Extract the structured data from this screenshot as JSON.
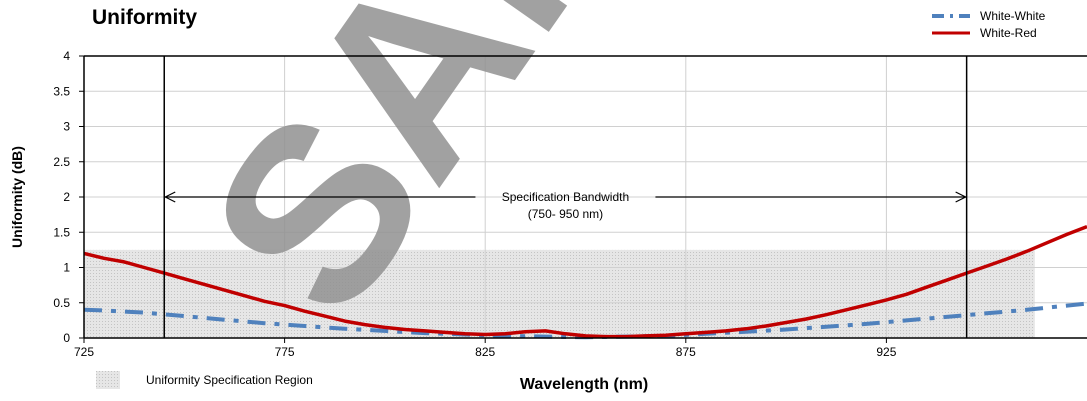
{
  "chart_data": {
    "type": "line",
    "title": "Uniformity",
    "xlabel": "Wavelength (nm)",
    "ylabel": "Uniformity (dB)",
    "xlim": [
      725,
      975
    ],
    "ylim": [
      0,
      4
    ],
    "x_ticks": [
      725,
      775,
      825,
      875,
      925
    ],
    "y_ticks": [
      0,
      0.5,
      1,
      1.5,
      2,
      2.5,
      3,
      3.5,
      4
    ],
    "grid": true,
    "legend_position": "top-right",
    "series": [
      {
        "name": "White-White",
        "style": "dash-dot",
        "color": "#4f81bd",
        "x": [
          725,
          730,
          740,
          750,
          760,
          770,
          780,
          790,
          800,
          810,
          820,
          830,
          840,
          850,
          860,
          870,
          880,
          890,
          900,
          910,
          920,
          930,
          940,
          950,
          960,
          970,
          975
        ],
        "y": [
          0.4,
          0.39,
          0.36,
          0.31,
          0.26,
          0.21,
          0.17,
          0.13,
          0.1,
          0.07,
          0.05,
          0.03,
          0.02,
          0.01,
          0.02,
          0.03,
          0.06,
          0.09,
          0.12,
          0.16,
          0.2,
          0.25,
          0.3,
          0.35,
          0.4,
          0.46,
          0.49
        ]
      },
      {
        "name": "White-Red",
        "style": "solid",
        "color": "#c00000",
        "x": [
          725,
          730,
          735,
          740,
          745,
          750,
          755,
          760,
          765,
          770,
          775,
          780,
          785,
          790,
          795,
          800,
          805,
          810,
          815,
          820,
          825,
          830,
          835,
          840,
          845,
          850,
          855,
          860,
          865,
          870,
          875,
          880,
          885,
          890,
          895,
          900,
          905,
          910,
          915,
          920,
          925,
          930,
          935,
          940,
          945,
          950,
          955,
          960,
          965,
          970,
          975
        ],
        "y": [
          1.2,
          1.13,
          1.08,
          1.0,
          0.92,
          0.84,
          0.76,
          0.68,
          0.6,
          0.52,
          0.46,
          0.38,
          0.31,
          0.24,
          0.19,
          0.15,
          0.12,
          0.1,
          0.08,
          0.06,
          0.05,
          0.06,
          0.09,
          0.1,
          0.06,
          0.03,
          0.02,
          0.02,
          0.03,
          0.04,
          0.06,
          0.08,
          0.1,
          0.13,
          0.17,
          0.22,
          0.27,
          0.33,
          0.4,
          0.47,
          0.54,
          0.62,
          0.72,
          0.82,
          0.92,
          1.02,
          1.12,
          1.23,
          1.35,
          1.47,
          1.58
        ]
      }
    ],
    "spec_region": {
      "x_start": 725,
      "x_end": 962,
      "y_max": 1.25,
      "label": "Uniformity Specification Region"
    },
    "spec_bandwidth": {
      "x_start": 745,
      "x_end": 945,
      "label_line1": "Specification Bandwidth",
      "label_line2": "(750- 950 nm)"
    },
    "watermark": "SAMPLE"
  }
}
